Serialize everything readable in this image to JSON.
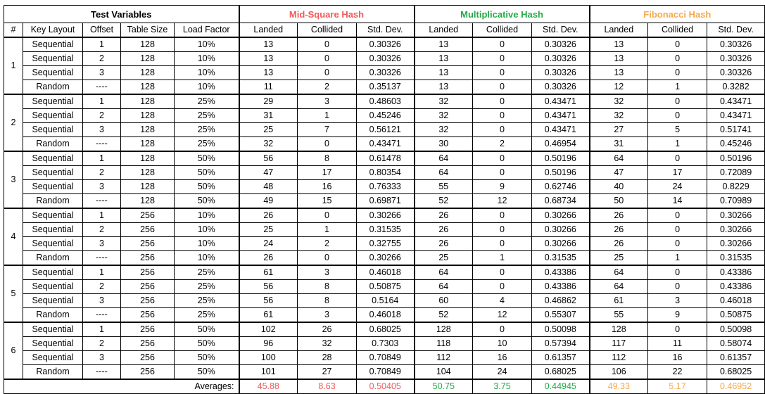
{
  "titles": {
    "test": "Test Variables",
    "mid": "Mid-Square Hash",
    "mul": "Multiplicative Hash",
    "fib": "Fibonacci Hash"
  },
  "headers": {
    "num": "#",
    "layout": "Key Layout",
    "offset": "Offset",
    "table_size": "Table Size",
    "load_factor": "Load Factor",
    "landed": "Landed",
    "collided": "Collided",
    "std_dev": "Std. Dev."
  },
  "colors": {
    "mid": "#f05a5a",
    "mul": "#22aa44",
    "fib": "#f7a94a"
  },
  "groups": [
    {
      "id": "1",
      "rows": [
        {
          "layout": "Sequential",
          "offset": "1",
          "size": "128",
          "load": "10%",
          "mid": [
            "13",
            "0",
            "0.30326"
          ],
          "mul": [
            "13",
            "0",
            "0.30326"
          ],
          "fib": [
            "13",
            "0",
            "0.30326"
          ]
        },
        {
          "layout": "Sequential",
          "offset": "2",
          "size": "128",
          "load": "10%",
          "mid": [
            "13",
            "0",
            "0.30326"
          ],
          "mul": [
            "13",
            "0",
            "0.30326"
          ],
          "fib": [
            "13",
            "0",
            "0.30326"
          ]
        },
        {
          "layout": "Sequential",
          "offset": "3",
          "size": "128",
          "load": "10%",
          "mid": [
            "13",
            "0",
            "0.30326"
          ],
          "mul": [
            "13",
            "0",
            "0.30326"
          ],
          "fib": [
            "13",
            "0",
            "0.30326"
          ]
        },
        {
          "layout": "Random",
          "offset": "----",
          "size": "128",
          "load": "10%",
          "mid": [
            "11",
            "2",
            "0.35137"
          ],
          "mul": [
            "13",
            "0",
            "0.30326"
          ],
          "fib": [
            "12",
            "1",
            "0.3282"
          ]
        }
      ]
    },
    {
      "id": "2",
      "rows": [
        {
          "layout": "Sequential",
          "offset": "1",
          "size": "128",
          "load": "25%",
          "mid": [
            "29",
            "3",
            "0.48603"
          ],
          "mul": [
            "32",
            "0",
            "0.43471"
          ],
          "fib": [
            "32",
            "0",
            "0.43471"
          ]
        },
        {
          "layout": "Sequential",
          "offset": "2",
          "size": "128",
          "load": "25%",
          "mid": [
            "31",
            "1",
            "0.45246"
          ],
          "mul": [
            "32",
            "0",
            "0.43471"
          ],
          "fib": [
            "32",
            "0",
            "0.43471"
          ]
        },
        {
          "layout": "Sequential",
          "offset": "3",
          "size": "128",
          "load": "25%",
          "mid": [
            "25",
            "7",
            "0.56121"
          ],
          "mul": [
            "32",
            "0",
            "0.43471"
          ],
          "fib": [
            "27",
            "5",
            "0.51741"
          ]
        },
        {
          "layout": "Random",
          "offset": "----",
          "size": "128",
          "load": "25%",
          "mid": [
            "32",
            "0",
            "0.43471"
          ],
          "mul": [
            "30",
            "2",
            "0.46954"
          ],
          "fib": [
            "31",
            "1",
            "0.45246"
          ]
        }
      ]
    },
    {
      "id": "3",
      "rows": [
        {
          "layout": "Sequential",
          "offset": "1",
          "size": "128",
          "load": "50%",
          "mid": [
            "56",
            "8",
            "0.61478"
          ],
          "mul": [
            "64",
            "0",
            "0.50196"
          ],
          "fib": [
            "64",
            "0",
            "0.50196"
          ]
        },
        {
          "layout": "Sequential",
          "offset": "2",
          "size": "128",
          "load": "50%",
          "mid": [
            "47",
            "17",
            "0.80354"
          ],
          "mul": [
            "64",
            "0",
            "0.50196"
          ],
          "fib": [
            "47",
            "17",
            "0.72089"
          ]
        },
        {
          "layout": "Sequential",
          "offset": "3",
          "size": "128",
          "load": "50%",
          "mid": [
            "48",
            "16",
            "0.76333"
          ],
          "mul": [
            "55",
            "9",
            "0.62746"
          ],
          "fib": [
            "40",
            "24",
            "0.8229"
          ]
        },
        {
          "layout": "Random",
          "offset": "----",
          "size": "128",
          "load": "50%",
          "mid": [
            "49",
            "15",
            "0.69871"
          ],
          "mul": [
            "52",
            "12",
            "0.68734"
          ],
          "fib": [
            "50",
            "14",
            "0.70989"
          ]
        }
      ]
    },
    {
      "id": "4",
      "rows": [
        {
          "layout": "Sequential",
          "offset": "1",
          "size": "256",
          "load": "10%",
          "mid": [
            "26",
            "0",
            "0.30266"
          ],
          "mul": [
            "26",
            "0",
            "0.30266"
          ],
          "fib": [
            "26",
            "0",
            "0.30266"
          ]
        },
        {
          "layout": "Sequential",
          "offset": "2",
          "size": "256",
          "load": "10%",
          "mid": [
            "25",
            "1",
            "0.31535"
          ],
          "mul": [
            "26",
            "0",
            "0.30266"
          ],
          "fib": [
            "26",
            "0",
            "0.30266"
          ]
        },
        {
          "layout": "Sequential",
          "offset": "3",
          "size": "256",
          "load": "10%",
          "mid": [
            "24",
            "2",
            "0.32755"
          ],
          "mul": [
            "26",
            "0",
            "0.30266"
          ],
          "fib": [
            "26",
            "0",
            "0.30266"
          ]
        },
        {
          "layout": "Random",
          "offset": "----",
          "size": "256",
          "load": "10%",
          "mid": [
            "26",
            "0",
            "0.30266"
          ],
          "mul": [
            "25",
            "1",
            "0.31535"
          ],
          "fib": [
            "25",
            "1",
            "0.31535"
          ]
        }
      ]
    },
    {
      "id": "5",
      "rows": [
        {
          "layout": "Sequential",
          "offset": "1",
          "size": "256",
          "load": "25%",
          "mid": [
            "61",
            "3",
            "0.46018"
          ],
          "mul": [
            "64",
            "0",
            "0.43386"
          ],
          "fib": [
            "64",
            "0",
            "0.43386"
          ]
        },
        {
          "layout": "Sequential",
          "offset": "2",
          "size": "256",
          "load": "25%",
          "mid": [
            "56",
            "8",
            "0.50875"
          ],
          "mul": [
            "64",
            "0",
            "0.43386"
          ],
          "fib": [
            "64",
            "0",
            "0.43386"
          ]
        },
        {
          "layout": "Sequential",
          "offset": "3",
          "size": "256",
          "load": "25%",
          "mid": [
            "56",
            "8",
            "0.5164"
          ],
          "mul": [
            "60",
            "4",
            "0.46862"
          ],
          "fib": [
            "61",
            "3",
            "0.46018"
          ]
        },
        {
          "layout": "Random",
          "offset": "----",
          "size": "256",
          "load": "25%",
          "mid": [
            "61",
            "3",
            "0.46018"
          ],
          "mul": [
            "52",
            "12",
            "0.55307"
          ],
          "fib": [
            "55",
            "9",
            "0.50875"
          ]
        }
      ]
    },
    {
      "id": "6",
      "rows": [
        {
          "layout": "Sequential",
          "offset": "1",
          "size": "256",
          "load": "50%",
          "mid": [
            "102",
            "26",
            "0.68025"
          ],
          "mul": [
            "128",
            "0",
            "0.50098"
          ],
          "fib": [
            "128",
            "0",
            "0.50098"
          ]
        },
        {
          "layout": "Sequential",
          "offset": "2",
          "size": "256",
          "load": "50%",
          "mid": [
            "96",
            "32",
            "0.7303"
          ],
          "mul": [
            "118",
            "10",
            "0.57394"
          ],
          "fib": [
            "117",
            "11",
            "0.58074"
          ]
        },
        {
          "layout": "Sequential",
          "offset": "3",
          "size": "256",
          "load": "50%",
          "mid": [
            "100",
            "28",
            "0.70849"
          ],
          "mul": [
            "112",
            "16",
            "0.61357"
          ],
          "fib": [
            "112",
            "16",
            "0.61357"
          ]
        },
        {
          "layout": "Random",
          "offset": "----",
          "size": "256",
          "load": "50%",
          "mid": [
            "101",
            "27",
            "0.70849"
          ],
          "mul": [
            "104",
            "24",
            "0.68025"
          ],
          "fib": [
            "106",
            "22",
            "0.68025"
          ]
        }
      ]
    }
  ],
  "averages": {
    "label": "Averages:",
    "mid": [
      "45.88",
      "8.63",
      "0.50405"
    ],
    "mul": [
      "50.75",
      "3.75",
      "0.44945"
    ],
    "fib": [
      "49.33",
      "5.17",
      "0.46952"
    ]
  }
}
